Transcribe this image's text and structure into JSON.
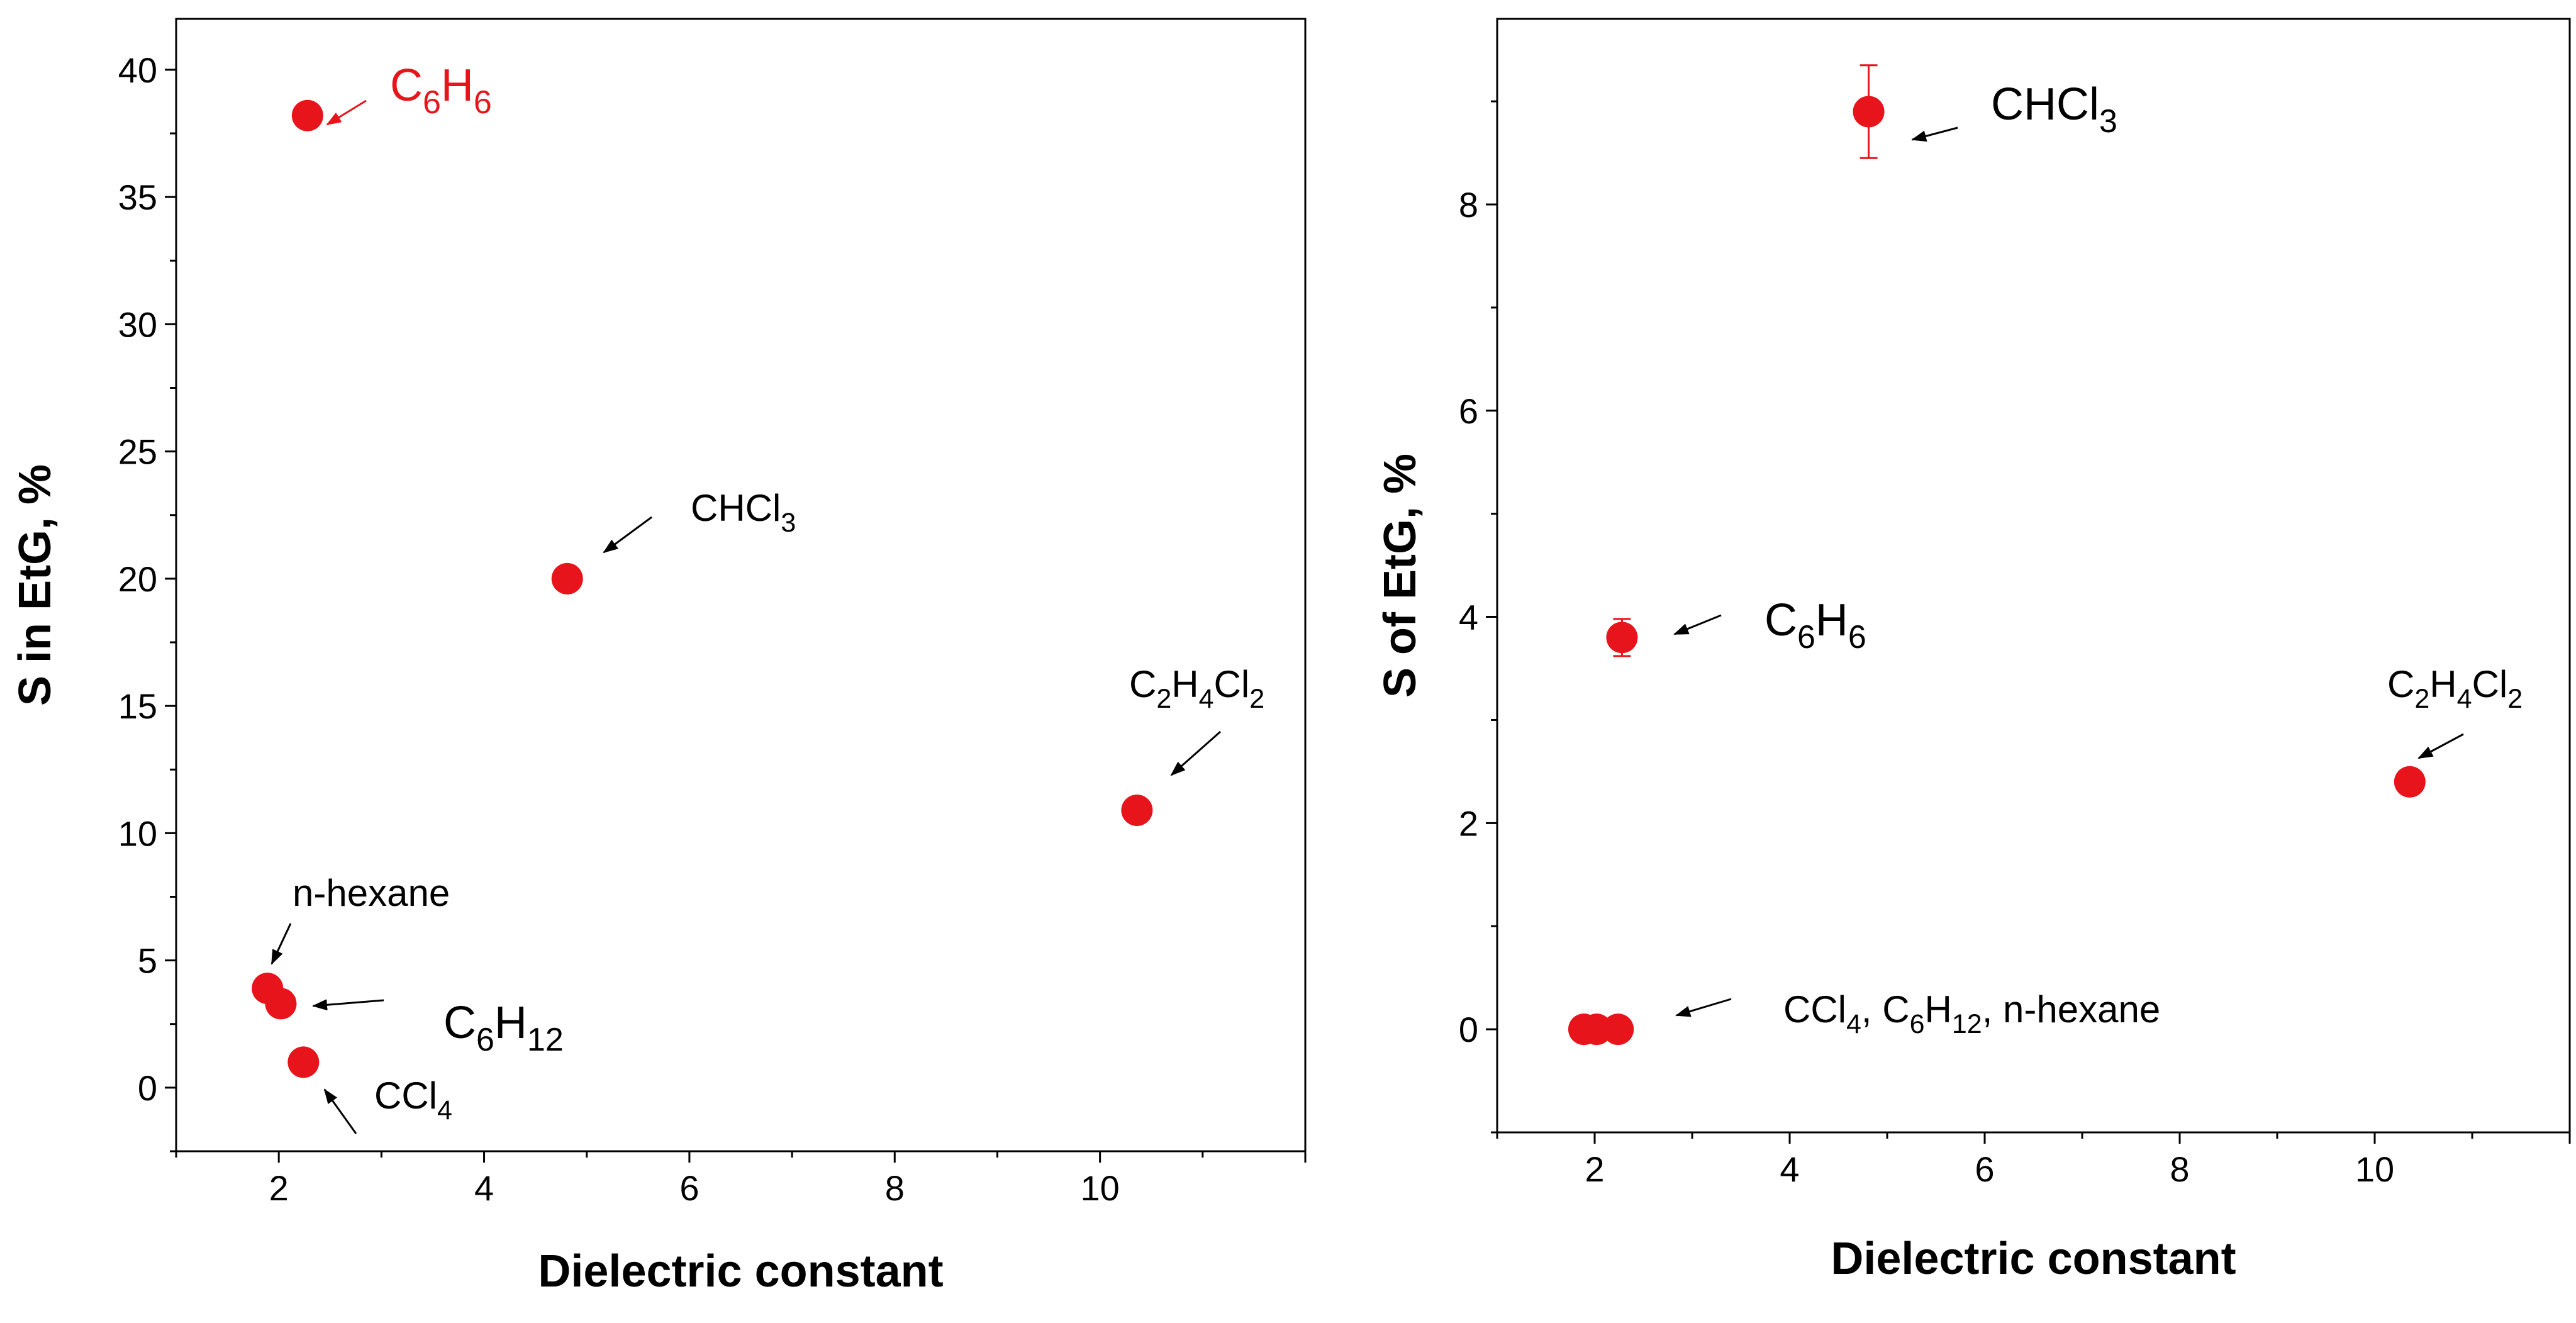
{
  "chart_data": [
    {
      "type": "scatter",
      "xlabel": "Dielectric constant",
      "ylabel": "S in EtG, %",
      "xlim": [
        1.0,
        12.0
      ],
      "ylim": [
        -2.5,
        42.0
      ],
      "xticks": [
        2,
        4,
        6,
        8,
        10
      ],
      "yticks": [
        0,
        5,
        10,
        15,
        20,
        25,
        30,
        35,
        40
      ],
      "grid": false,
      "marker_color": "#e8141b",
      "points": [
        {
          "x": 2.28,
          "y": 38.2
        },
        {
          "x": 4.81,
          "y": 20.0
        },
        {
          "x": 10.36,
          "y": 10.9
        },
        {
          "x": 1.89,
          "y": 3.9
        },
        {
          "x": 2.02,
          "y": 3.3
        },
        {
          "x": 2.24,
          "y": 1.0
        }
      ],
      "annotations": [
        {
          "id": "c6h6",
          "parts": [
            [
              "C",
              ""
            ],
            [
              "6",
              "sub"
            ],
            [
              "H",
              ""
            ],
            [
              "6",
              "sub"
            ]
          ],
          "color": "#e8141b",
          "target": {
            "x": 2.28,
            "y": 38.2
          }
        },
        {
          "id": "chcl3",
          "parts": [
            [
              "CHCl",
              ""
            ],
            [
              "3",
              "sub"
            ]
          ],
          "color": "#000000",
          "target": {
            "x": 4.81,
            "y": 20.0
          }
        },
        {
          "id": "c2h4cl2",
          "parts": [
            [
              "C",
              ""
            ],
            [
              "2",
              "sub"
            ],
            [
              "H",
              ""
            ],
            [
              "4",
              "sub"
            ],
            [
              "Cl",
              ""
            ],
            [
              "2",
              "sub"
            ]
          ],
          "color": "#000000",
          "target": {
            "x": 10.36,
            "y": 10.9
          }
        },
        {
          "id": "n-hexane",
          "parts": [
            [
              "n-hexane",
              ""
            ]
          ],
          "color": "#000000",
          "target": {
            "x": 1.89,
            "y": 3.9
          }
        },
        {
          "id": "c6h12",
          "parts": [
            [
              "C",
              ""
            ],
            [
              "6",
              "sub"
            ],
            [
              "H",
              ""
            ],
            [
              "12",
              "sub"
            ]
          ],
          "color": "#000000",
          "target": {
            "x": 2.02,
            "y": 3.3
          }
        },
        {
          "id": "ccl4",
          "parts": [
            [
              "CCl",
              ""
            ],
            [
              "4",
              "sub"
            ]
          ],
          "color": "#000000",
          "target": {
            "x": 2.24,
            "y": 1.0
          }
        }
      ]
    },
    {
      "type": "scatter",
      "xlabel": "Dielectric constant",
      "ylabel": "S of EtG, %",
      "xlim": [
        1.0,
        12.0
      ],
      "ylim": [
        -1.0,
        9.8
      ],
      "xticks": [
        2,
        4,
        6,
        8,
        10
      ],
      "yticks": [
        0,
        2,
        4,
        6,
        8
      ],
      "grid": false,
      "marker_color": "#e8141b",
      "points": [
        {
          "x": 4.81,
          "y": 8.9,
          "err": 0.45
        },
        {
          "x": 2.28,
          "y": 3.8,
          "err": 0.18
        },
        {
          "x": 10.36,
          "y": 2.4,
          "err": 0
        },
        {
          "x": 1.89,
          "y": 0.0,
          "err": 0
        },
        {
          "x": 2.02,
          "y": 0.0,
          "err": 0
        },
        {
          "x": 2.24,
          "y": 0.0,
          "err": 0
        }
      ],
      "annotations": [
        {
          "id": "chcl3",
          "parts": [
            [
              "CHCl",
              ""
            ],
            [
              "3",
              "sub"
            ]
          ],
          "color": "#000000",
          "target": {
            "x": 4.81,
            "y": 8.9
          }
        },
        {
          "id": "c6h6",
          "parts": [
            [
              "C",
              ""
            ],
            [
              "6",
              "sub"
            ],
            [
              "H",
              ""
            ],
            [
              "6",
              "sub"
            ]
          ],
          "color": "#000000",
          "target": {
            "x": 2.28,
            "y": 3.8
          }
        },
        {
          "id": "c2h4cl2",
          "parts": [
            [
              "C",
              ""
            ],
            [
              "2",
              "sub"
            ],
            [
              "H",
              ""
            ],
            [
              "4",
              "sub"
            ],
            [
              "Cl",
              ""
            ],
            [
              "2",
              "sub"
            ]
          ],
          "color": "#000000",
          "target": {
            "x": 10.36,
            "y": 2.4
          }
        },
        {
          "id": "ccl4-c6h12-n-hexane",
          "parts": [
            [
              "CCl",
              ""
            ],
            [
              "4",
              "sub"
            ],
            [
              ", C",
              ""
            ],
            [
              "6",
              "sub"
            ],
            [
              "H",
              ""
            ],
            [
              "12",
              "sub"
            ],
            [
              ", n-hexane",
              ""
            ]
          ],
          "color": "#000000",
          "target": {
            "x": 2.24,
            "y": 0.0
          }
        }
      ]
    }
  ]
}
